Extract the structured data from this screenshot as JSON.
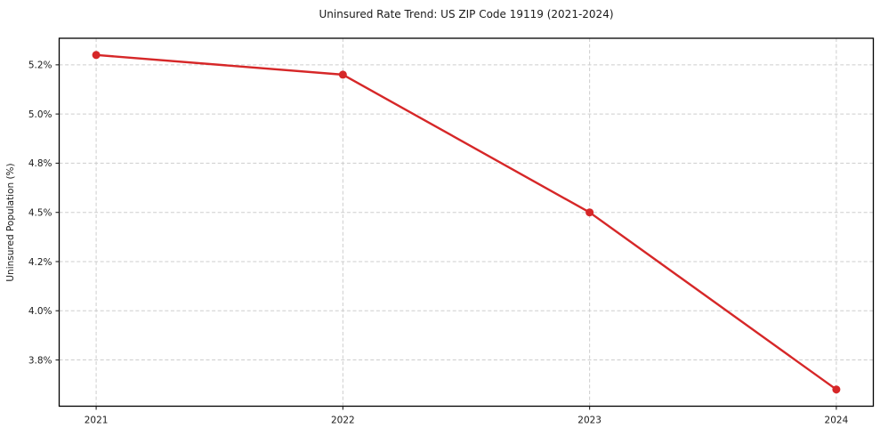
{
  "chart_data": {
    "type": "line",
    "title": "Uninsured Rate Trend: US ZIP Code 19119 (2021-2024)",
    "xlabel": "",
    "ylabel": "Uninsured Population (%)",
    "x": [
      2021,
      2022,
      2023,
      2024
    ],
    "series": [
      {
        "name": "Uninsured rate",
        "values": [
          5.3,
          5.2,
          4.5,
          3.6
        ]
      }
    ],
    "x_ticks": [
      {
        "value": 2021,
        "label": "2021"
      },
      {
        "value": 2022,
        "label": "2022"
      },
      {
        "value": 2023,
        "label": "2023"
      },
      {
        "value": 2024,
        "label": "2024"
      }
    ],
    "y_ticks": [
      {
        "value": 5.25,
        "label": "5.2%"
      },
      {
        "value": 5.0,
        "label": "5.0%"
      },
      {
        "value": 4.75,
        "label": "4.8%"
      },
      {
        "value": 4.5,
        "label": "4.5%"
      },
      {
        "value": 4.25,
        "label": "4.2%"
      },
      {
        "value": 4.0,
        "label": "4.0%"
      },
      {
        "value": 3.75,
        "label": "3.8%"
      }
    ],
    "xlim": [
      2020.85,
      2024.15
    ],
    "ylim": [
      3.515,
      5.385
    ],
    "grid": true,
    "legend": "none",
    "line_color": "#d62728",
    "marker": "circle"
  }
}
